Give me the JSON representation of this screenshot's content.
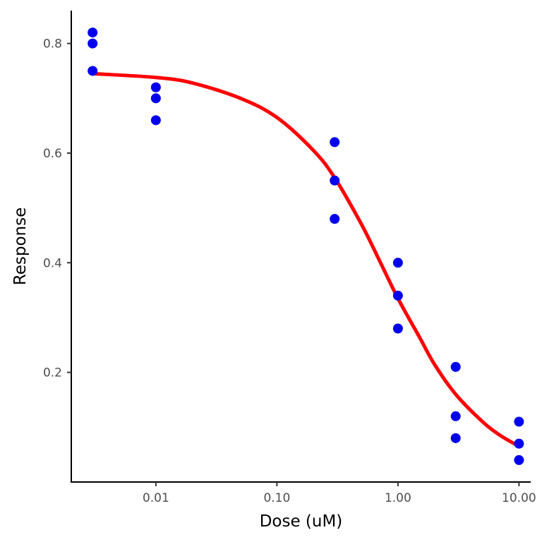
{
  "chart_data": {
    "type": "scatter",
    "title": "",
    "xlabel": "Dose (uM)",
    "ylabel": "Response",
    "x_scale": "log10",
    "xlim": [
      0.002,
      12.5
    ],
    "ylim": [
      0.0,
      0.86
    ],
    "x_ticks": [
      {
        "value": 0.01,
        "label": "0.01"
      },
      {
        "value": 0.1,
        "label": "0.10"
      },
      {
        "value": 1,
        "label": "1.00"
      },
      {
        "value": 10,
        "label": "10.00"
      }
    ],
    "y_ticks": [
      {
        "value": 0.2,
        "label": "0.2"
      },
      {
        "value": 0.4,
        "label": "0.4"
      },
      {
        "value": 0.6,
        "label": "0.6"
      },
      {
        "value": 0.8,
        "label": "0.8"
      }
    ],
    "grid": false,
    "legend": "none",
    "series": [
      {
        "kind": "points",
        "color": "#0000ee",
        "points": [
          {
            "x": 0.003,
            "y": 0.82
          },
          {
            "x": 0.003,
            "y": 0.8
          },
          {
            "x": 0.003,
            "y": 0.75
          },
          {
            "x": 0.01,
            "y": 0.72
          },
          {
            "x": 0.01,
            "y": 0.7
          },
          {
            "x": 0.01,
            "y": 0.66
          },
          {
            "x": 0.3,
            "y": 0.62
          },
          {
            "x": 0.3,
            "y": 0.55
          },
          {
            "x": 0.3,
            "y": 0.48
          },
          {
            "x": 1,
            "y": 0.4
          },
          {
            "x": 1,
            "y": 0.34
          },
          {
            "x": 1,
            "y": 0.28
          },
          {
            "x": 3,
            "y": 0.21
          },
          {
            "x": 3,
            "y": 0.12
          },
          {
            "x": 3,
            "y": 0.08
          },
          {
            "x": 10,
            "y": 0.11
          },
          {
            "x": 10,
            "y": 0.07
          },
          {
            "x": 10,
            "y": 0.04
          }
        ]
      },
      {
        "kind": "fitted-curve",
        "color": "#ff0000",
        "points": [
          {
            "x": 0.003,
            "y": 0.745
          },
          {
            "x": 0.01,
            "y": 0.738
          },
          {
            "x": 0.02,
            "y": 0.728
          },
          {
            "x": 0.05,
            "y": 0.7
          },
          {
            "x": 0.1,
            "y": 0.665
          },
          {
            "x": 0.2,
            "y": 0.605
          },
          {
            "x": 0.3,
            "y": 0.555
          },
          {
            "x": 0.5,
            "y": 0.47
          },
          {
            "x": 0.7,
            "y": 0.405
          },
          {
            "x": 1,
            "y": 0.335
          },
          {
            "x": 1.5,
            "y": 0.265
          },
          {
            "x": 2,
            "y": 0.215
          },
          {
            "x": 3,
            "y": 0.16
          },
          {
            "x": 5,
            "y": 0.11
          },
          {
            "x": 7,
            "y": 0.085
          },
          {
            "x": 10,
            "y": 0.065
          }
        ]
      }
    ]
  }
}
